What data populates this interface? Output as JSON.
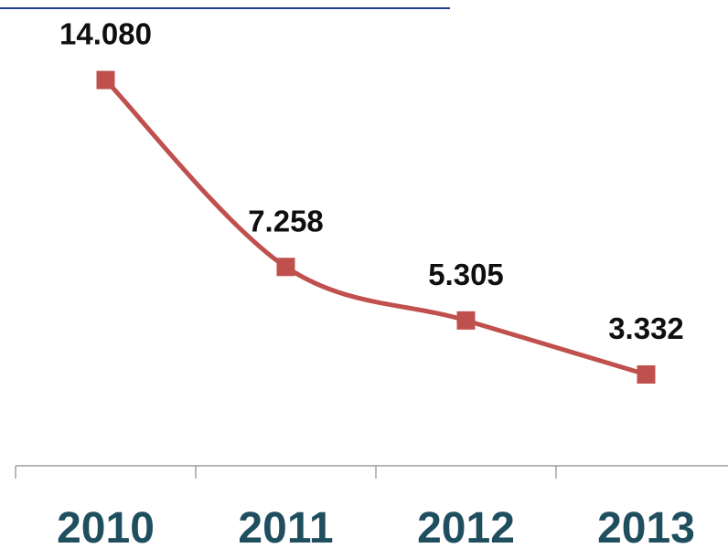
{
  "colors": {
    "line": "#c0504d",
    "axis": "#8c8c8c",
    "tick_label": "#1f4e5f",
    "top_rule": "#1f3f8f"
  },
  "chart_data": {
    "type": "line",
    "title": "",
    "xlabel": "",
    "ylabel": "",
    "categories": [
      "2010",
      "2011",
      "2012",
      "2013"
    ],
    "series": [
      {
        "values": [
          14080,
          7258,
          5305,
          3332
        ],
        "labels": [
          "14.080",
          "7.258",
          "5.305",
          "3.332"
        ],
        "marker": "square",
        "smooth": true
      }
    ],
    "ylim": [
      0,
      17000
    ],
    "grid": false,
    "legend": "none"
  }
}
